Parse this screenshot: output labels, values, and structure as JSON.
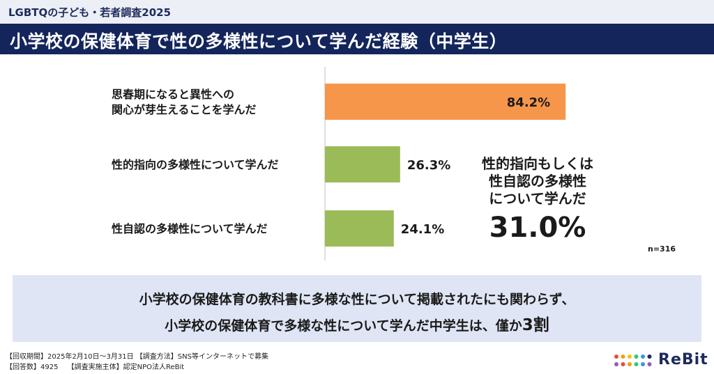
{
  "header": {
    "series_label": "LGBTQの子ども・若者調査2025",
    "title": "小学校の保健体育で性の多様性について学んだ経験（中学生）"
  },
  "chart_data": {
    "type": "bar",
    "orientation": "horizontal",
    "title": "小学校の保健体育で性の多様性について学んだ経験（中学生）",
    "xlabel": "",
    "ylabel": "",
    "grid": false,
    "legend": "none",
    "xlim": [
      0,
      100
    ],
    "unit": "%",
    "categories": [
      [
        "思春期になると異性への",
        "関心が芽生えることを学んだ"
      ],
      [
        "性的指向の多様性について学んだ"
      ],
      [
        "性自認の多様性について学んだ"
      ]
    ],
    "values": [
      84.2,
      26.3,
      24.1
    ],
    "value_labels": [
      "84.2%",
      "26.3%",
      "24.1%"
    ],
    "bar_colors": [
      "#f6964b",
      "#9bbb59",
      "#9bbb59"
    ],
    "callout": {
      "lines": [
        "性的指向もしくは",
        "性自認の多様性",
        "について学んだ"
      ],
      "value": "31.0%"
    },
    "sample_size": "n=316"
  },
  "summary": {
    "line1": "小学校の保健体育の教科書に多様な性について掲載されたにも関わらず、",
    "line2_prefix": "小学校の保健体育で多様な性について学んだ中学生は、僅か",
    "line2_emphasis": "3割"
  },
  "footer": {
    "line1": "【回収期間】2025年2月10日～3月31日 【調査方法】SNS等インターネットで募集",
    "line2": "【回答数】4925　 【調査実施主体】認定NPO法人ReBit"
  },
  "logo": {
    "text": "ReBit",
    "dot_colors": [
      "#e84c3d",
      "#f39c12",
      "#f1c40f",
      "#2ecc71",
      "#3498db",
      "#1e2b5c",
      "#9b59b6",
      "#e84c3d",
      "#f39c12",
      "#2ecc71",
      "#3498db",
      "#9b59b6"
    ]
  }
}
